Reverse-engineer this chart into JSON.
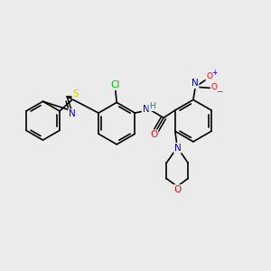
{
  "background_color": "#ebebeb",
  "atom_colors": {
    "C": "#000000",
    "N": "#0000cc",
    "O": "#ff0000",
    "S": "#cccc00",
    "Cl": "#00bb00",
    "H": "#008888"
  },
  "bond_lw": 1.2,
  "font_size": 7.5
}
